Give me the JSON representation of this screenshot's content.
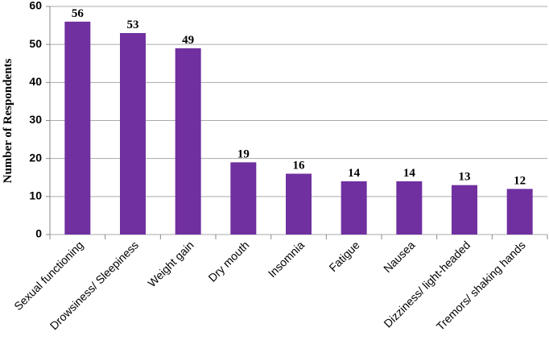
{
  "chart_data": {
    "type": "bar",
    "y_label": "Number of Respondents",
    "categories": [
      "Sexual functioning",
      "Drowsiness/ Sleepiness",
      "Weight gain",
      "Dry mouth",
      "Insomnia",
      "Fatigue",
      "Nausea",
      "Dizziness/ light-headed",
      "Tremors/ shaking hands"
    ],
    "values": [
      56,
      53,
      49,
      19,
      16,
      14,
      14,
      13,
      12
    ],
    "color": "#7030a0",
    "ylim": [
      0,
      60
    ],
    "yticks": [
      0,
      10,
      20,
      30,
      40,
      50,
      60
    ],
    "grid": true
  }
}
